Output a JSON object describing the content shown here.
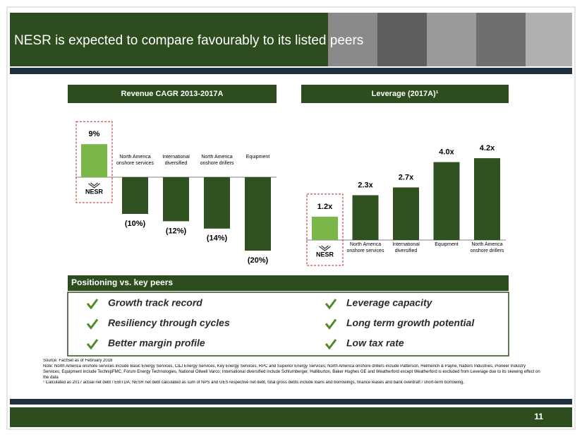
{
  "header": {
    "title": "NESR is expected to compare favourably to its listed peers"
  },
  "chart_data": [
    {
      "type": "bar",
      "title": "Revenue CAGR 2013-2017A",
      "categories": [
        "NESR",
        "North America onshore services",
        "International diversified",
        "North America onshore drillers",
        "Equipment"
      ],
      "values": [
        9,
        -10,
        -12,
        -14,
        -20
      ],
      "value_labels": [
        "9%",
        "(10%)",
        "(12%)",
        "(14%)",
        "(20%)"
      ],
      "colors": [
        "#7ab648",
        "#2f5220",
        "#2f5220",
        "#2f5220",
        "#2f5220"
      ]
    },
    {
      "type": "bar",
      "title": "Leverage (2017A)¹",
      "categories": [
        "NESR",
        "North America onshore services",
        "International diversified",
        "Equipment",
        "North America onshore drillers"
      ],
      "values": [
        1.2,
        2.3,
        2.7,
        4.0,
        4.2
      ],
      "value_labels": [
        "1.2x",
        "2.3x",
        "2.7x",
        "4.0x",
        "4.2x"
      ],
      "colors": [
        "#7ab648",
        "#2f5220",
        "#2f5220",
        "#2f5220",
        "#2f5220"
      ]
    }
  ],
  "positioning": {
    "title": "Positioning vs. key peers",
    "items": [
      "Growth track record",
      "Leverage capacity",
      "Resiliency through cycles",
      "Long term growth potential",
      "Better margin profile",
      "Low tax rate"
    ]
  },
  "footnotes": [
    "Source: FactSet as of February 2018",
    "Note: North America onshore services include Basic Energy Services, C&J Energy Services, Key Energy Services, RPC and Superior Energy Services; North America onshore drillers include Patterson, Helmerich & Payne, Nabors Industries, Pioneer Industry Services; Equipment include TechnipFMC, Forum Energy Technologies, National Oilwell Varco; International diversified include Schlumberger, Halliburton, Baker Hughes GE and Weatherford except Weatherford is excluded from Leverage due to its skewing effect on the data",
    "¹ Calculated as 2017 actual net debt / EBITDA; NESR net debt calculated as sum of NPS and GES respective net debt, total gross debts include loans and borrowings, finance leases and bank overdraft / short-term borrowing,"
  ],
  "page_number": "11"
}
